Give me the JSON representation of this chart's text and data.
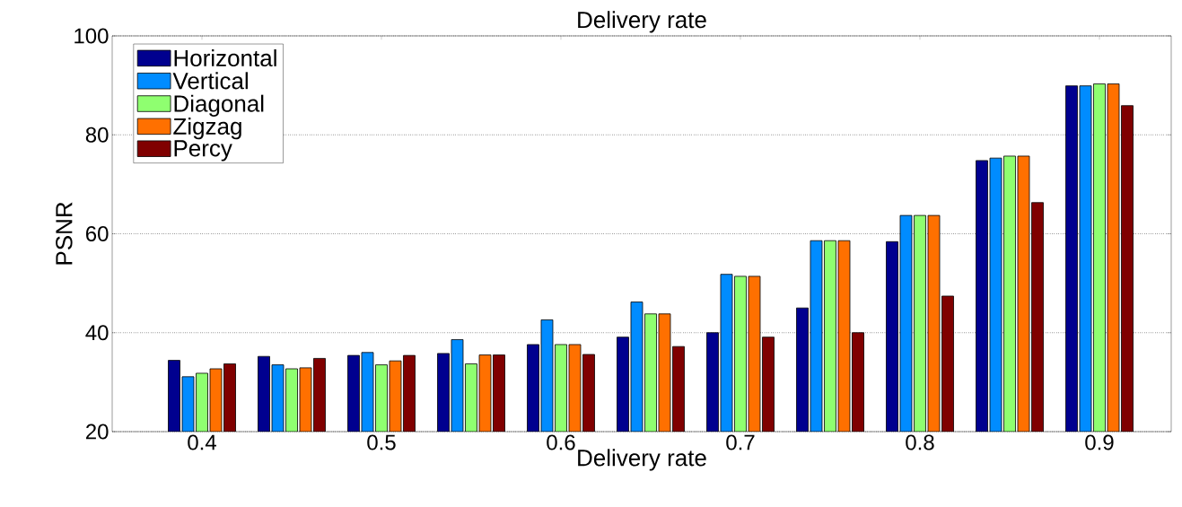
{
  "chart_data": {
    "type": "bar",
    "title": "Delivery rate",
    "xlabel": "Delivery rate",
    "ylabel": "PSNR",
    "x": [
      0.4,
      0.45,
      0.5,
      0.55,
      0.6,
      0.65,
      0.7,
      0.75,
      0.8,
      0.85,
      0.9
    ],
    "series": [
      {
        "name": "Horizontal",
        "color": "#00008f",
        "values": [
          34.4,
          35.2,
          35.4,
          35.8,
          37.6,
          39.1,
          40.0,
          45.0,
          58.4,
          74.8,
          89.9
        ]
      },
      {
        "name": "Vertical",
        "color": "#008cff",
        "values": [
          31.1,
          33.5,
          36.0,
          38.6,
          42.6,
          46.2,
          51.8,
          58.6,
          63.7,
          75.3,
          89.9
        ]
      },
      {
        "name": "Diagonal",
        "color": "#8fff70",
        "values": [
          31.8,
          32.7,
          33.5,
          33.7,
          37.6,
          43.8,
          51.4,
          58.6,
          63.7,
          75.7,
          90.3
        ]
      },
      {
        "name": "Zigzag",
        "color": "#ff7000",
        "values": [
          32.7,
          32.9,
          34.3,
          35.5,
          37.6,
          43.8,
          51.4,
          58.6,
          63.7,
          75.7,
          90.3
        ]
      },
      {
        "name": "Percy",
        "color": "#800000",
        "values": [
          33.7,
          34.8,
          35.4,
          35.5,
          35.6,
          37.2,
          39.1,
          40.0,
          47.4,
          66.3,
          85.9
        ]
      }
    ],
    "xlim": [
      0.35,
      0.94
    ],
    "ylim": [
      20,
      100
    ],
    "xticks": [
      0.4,
      0.5,
      0.6,
      0.7,
      0.8,
      0.9
    ],
    "yticks": [
      20,
      40,
      60,
      80,
      100
    ],
    "grid": "y",
    "legend": "top left"
  }
}
